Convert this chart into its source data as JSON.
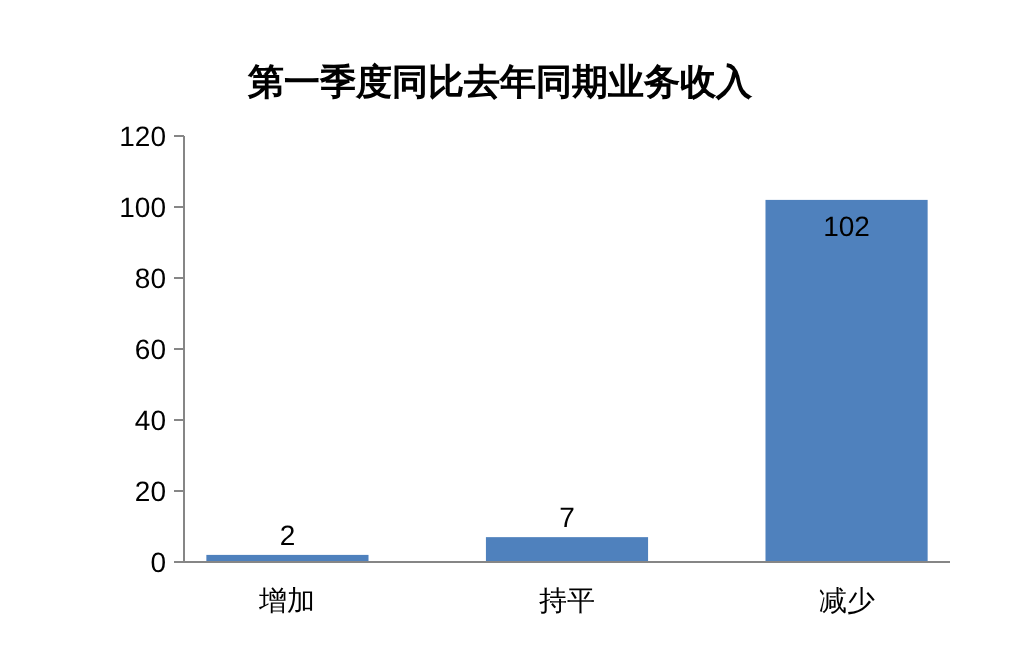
{
  "chart_data": {
    "type": "bar",
    "title": "第一季度同比去年同期业务收入",
    "categories": [
      "增加",
      "持平",
      "减少"
    ],
    "values": [
      2,
      7,
      102
    ],
    "color": "#4f81bd",
    "ylim": [
      0,
      120
    ],
    "yticks": [
      0,
      20,
      40,
      60,
      80,
      100,
      120
    ],
    "grid": false,
    "data_labels": true
  }
}
